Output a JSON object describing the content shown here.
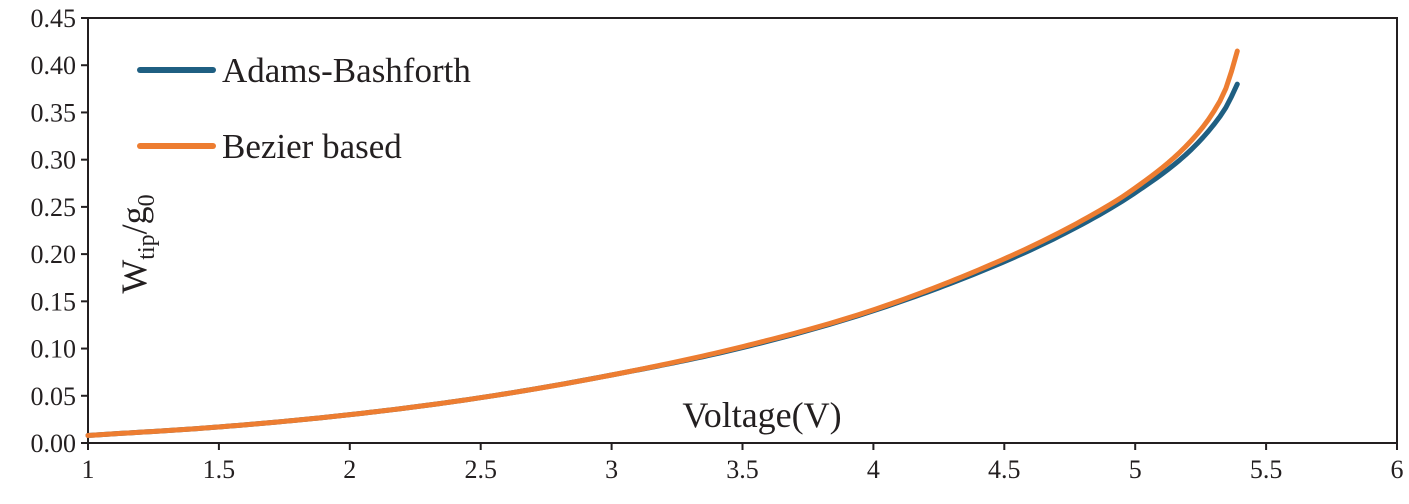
{
  "chart_data": {
    "type": "line",
    "title": "",
    "xlabel": "Voltage(V)",
    "ylabel": {
      "main": "W",
      "sub1": "tip",
      "mid": "/g",
      "sub2": "0"
    },
    "xlim": [
      1,
      6
    ],
    "ylim": [
      0,
      0.45
    ],
    "x_ticks": [
      "1",
      "1.5",
      "2",
      "2.5",
      "3",
      "3.5",
      "4",
      "4.5",
      "5",
      "5.5",
      "6"
    ],
    "y_ticks": [
      "0.00",
      "0.05",
      "0.10",
      "0.15",
      "0.20",
      "0.25",
      "0.30",
      "0.35",
      "0.40",
      "0.45"
    ],
    "grid": false,
    "legend_position": "top-left",
    "series": [
      {
        "name": "Adams-Bashforth",
        "color": "#1f5f82",
        "x": [
          1.0,
          1.5,
          2.0,
          2.5,
          3.0,
          3.5,
          4.0,
          4.5,
          4.8,
          5.0,
          5.2,
          5.3,
          5.35,
          5.39
        ],
        "y": [
          0.008,
          0.017,
          0.03,
          0.048,
          0.072,
          0.101,
          0.14,
          0.192,
          0.232,
          0.265,
          0.307,
          0.337,
          0.357,
          0.38
        ]
      },
      {
        "name": "Bezier based",
        "color": "#ed7d31",
        "x": [
          1.0,
          1.5,
          2.0,
          2.5,
          3.0,
          3.5,
          4.0,
          4.5,
          4.8,
          5.0,
          5.2,
          5.3,
          5.35,
          5.39
        ],
        "y": [
          0.008,
          0.017,
          0.03,
          0.048,
          0.072,
          0.102,
          0.141,
          0.195,
          0.236,
          0.27,
          0.316,
          0.351,
          0.378,
          0.415
        ]
      }
    ]
  }
}
